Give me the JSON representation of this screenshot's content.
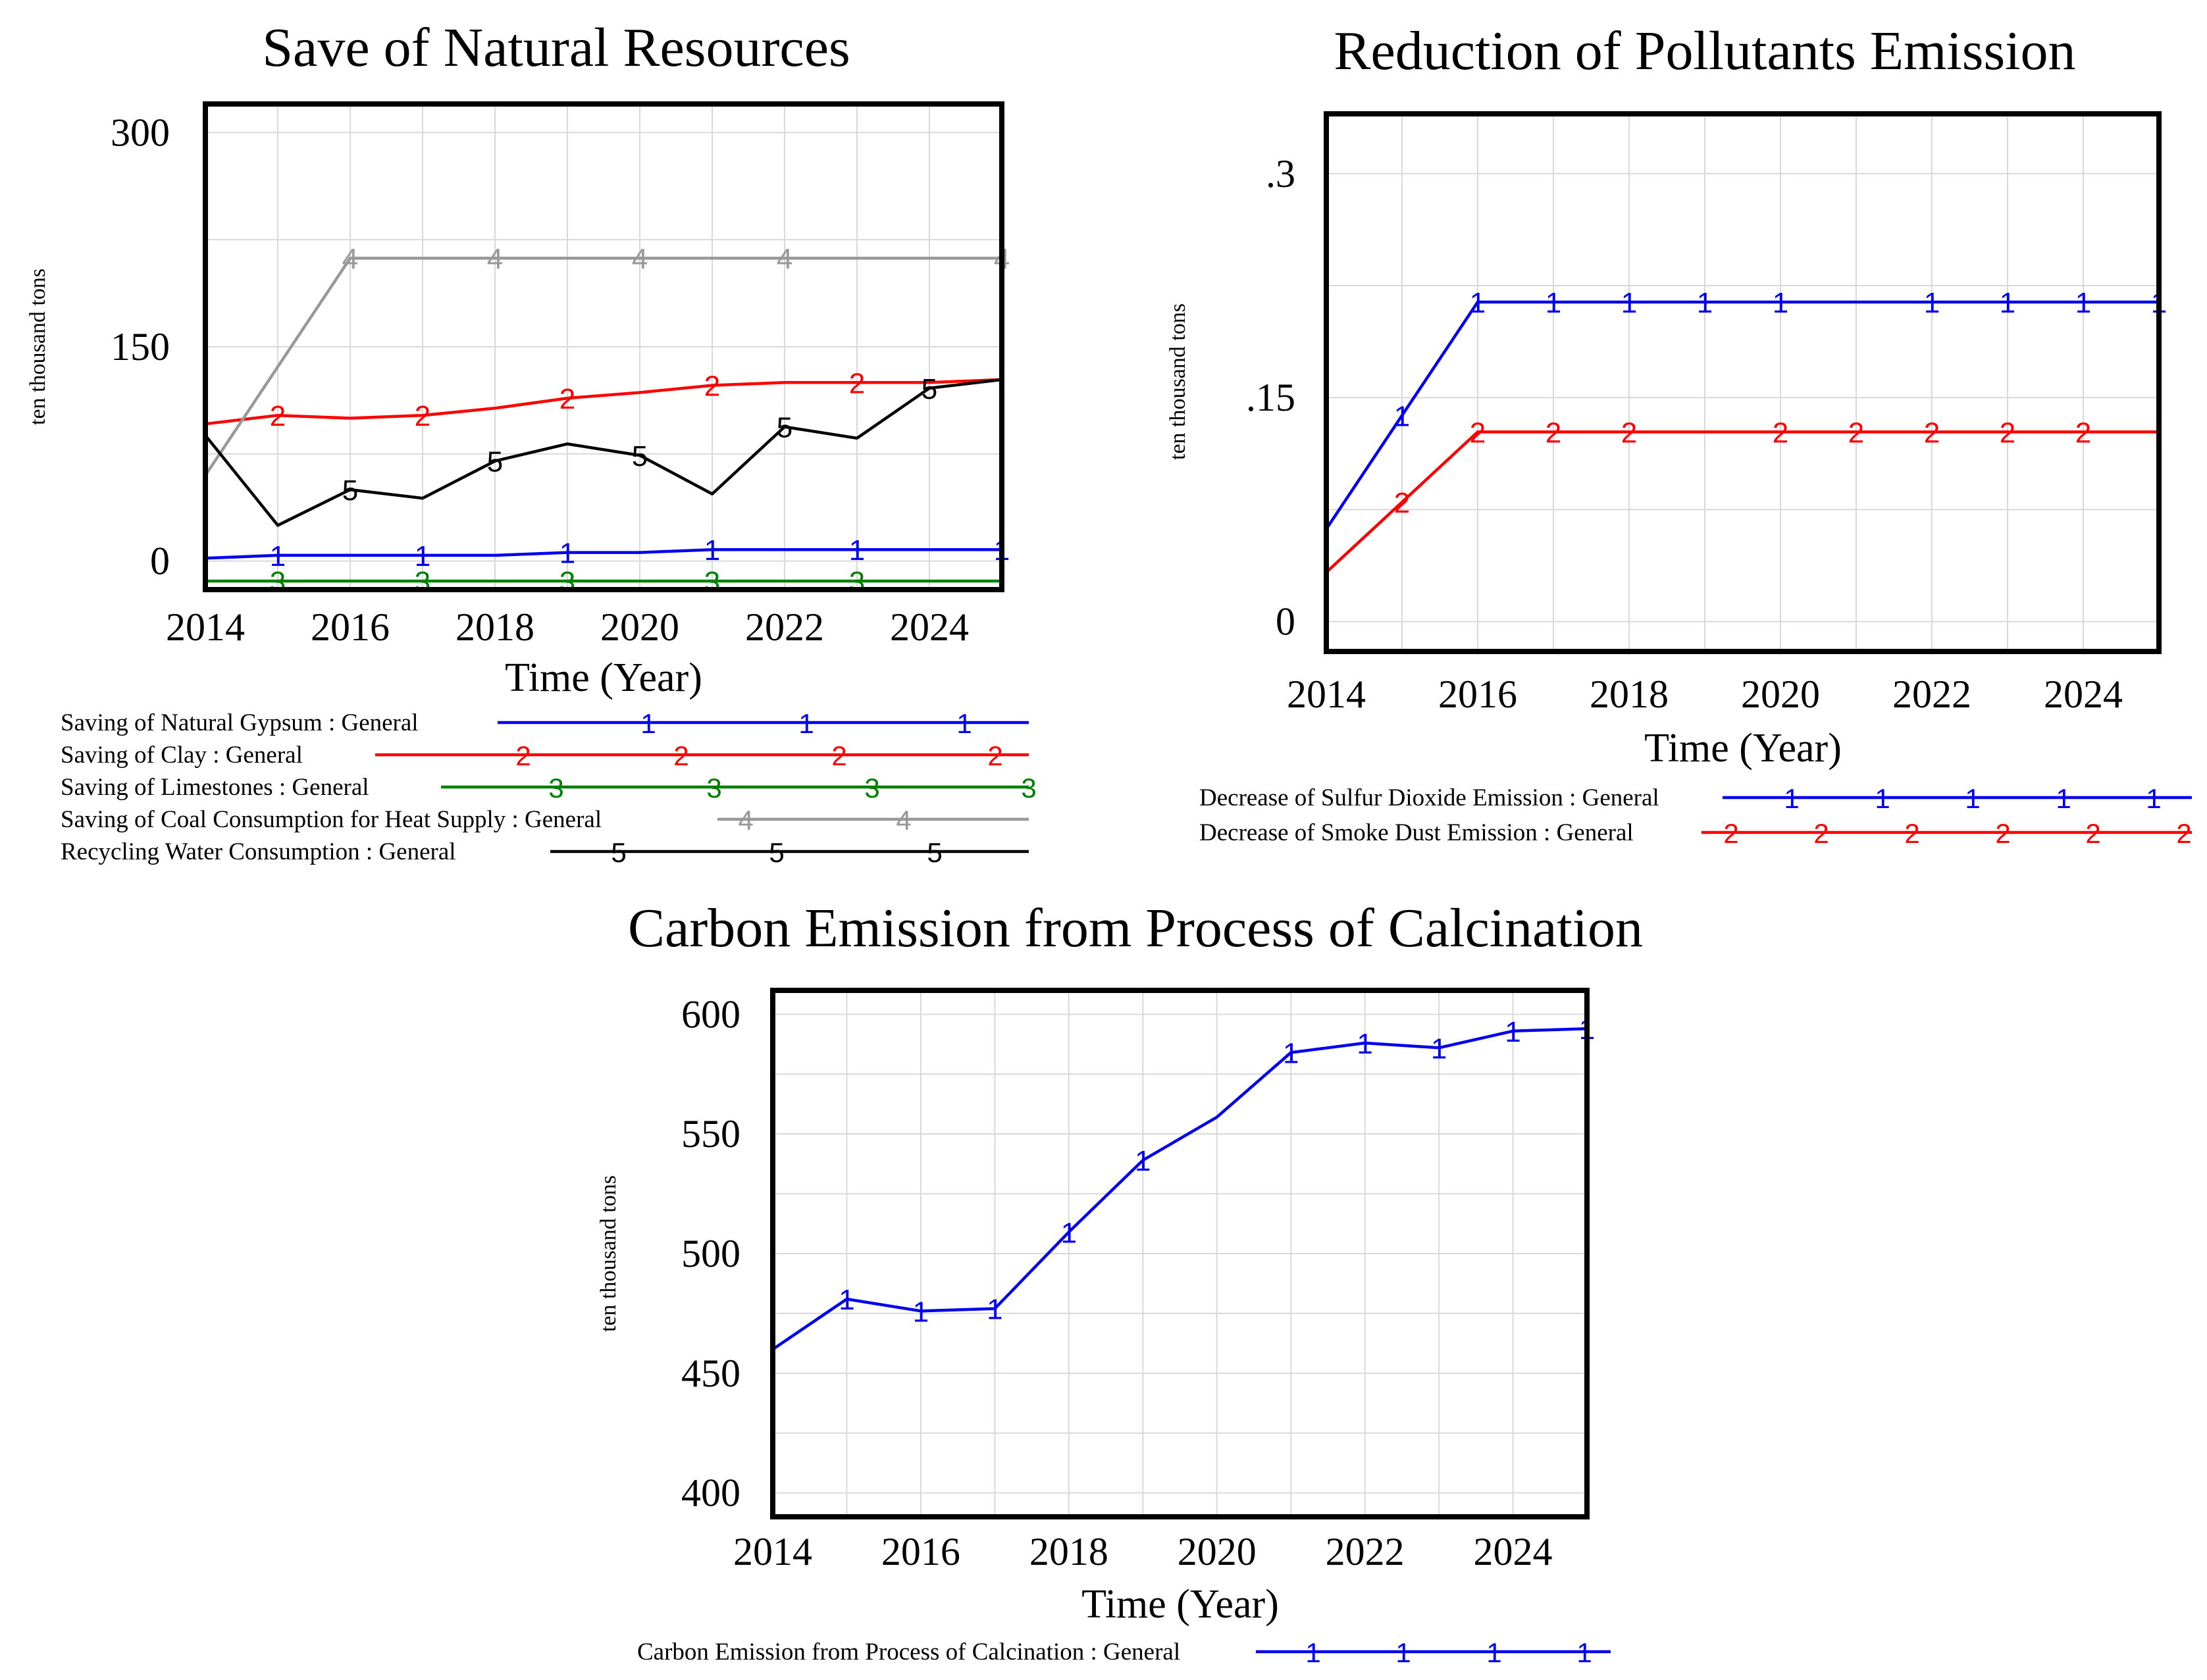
{
  "chart_data": [
    {
      "type": "line",
      "title": "Save of Natural Resources",
      "xlabel": "Time (Year)",
      "ylabel": "ten thousand tons",
      "xlim": [
        2014,
        2025
      ],
      "ylim": [
        -20,
        320
      ],
      "x_ticks": [
        2014,
        2016,
        2018,
        2020,
        2022,
        2024
      ],
      "x_tick_labels": [
        "2014",
        "2016",
        "2018",
        "2020",
        "2022",
        "2024"
      ],
      "y_ticks": [
        0,
        150,
        300
      ],
      "y_tick_labels": [
        "0",
        "150",
        "300"
      ],
      "x": [
        2014,
        2015,
        2016,
        2017,
        2018,
        2019,
        2020,
        2021,
        2022,
        2023,
        2024,
        2025
      ],
      "series": [
        {
          "name": "Saving of Natural Gypsum : General",
          "marker": "1",
          "color": "#0000ee",
          "values": [
            2,
            4,
            4,
            4,
            4,
            6,
            6,
            8,
            8,
            8,
            8,
            8
          ],
          "marker_x": [
            2015,
            2017,
            2019,
            2021,
            2023,
            2025
          ]
        },
        {
          "name": "Saving of Clay : General",
          "marker": "2",
          "color": "#ff0000",
          "values": [
            96,
            102,
            100,
            102,
            107,
            114,
            118,
            123,
            125,
            125,
            125,
            127
          ],
          "marker_x": [
            2015,
            2017,
            2019,
            2021,
            2023
          ]
        },
        {
          "name": "Saving of Limestones : General",
          "marker": "3",
          "color": "#008000",
          "values": [
            -14,
            -14,
            -14,
            -14,
            -14,
            -14,
            -14,
            -14,
            -14,
            -14,
            -14,
            -14
          ],
          "marker_x": [
            2015,
            2017,
            2019,
            2021,
            2023
          ]
        },
        {
          "name": "Saving of Coal Consumption for Heat Supply : General",
          "marker": "4",
          "color": "#999999",
          "values": [
            60,
            136,
            212,
            212,
            212,
            212,
            212,
            212,
            212,
            212,
            212,
            212
          ],
          "marker_x": [
            2016,
            2018,
            2020,
            2022,
            2025
          ]
        },
        {
          "name": "Recycling Water Consumption : General",
          "marker": "5",
          "color": "#000000",
          "values": [
            88,
            25,
            50,
            44,
            70,
            82,
            74,
            47,
            94,
            86,
            121,
            127
          ],
          "marker_x": [
            2016,
            2018,
            2020,
            2022,
            2024
          ]
        }
      ]
    },
    {
      "type": "line",
      "title": "Reduction of Pollutants Emission",
      "xlabel": "Time (Year)",
      "ylabel": "ten thousand tons",
      "xlim": [
        2014,
        2025
      ],
      "ylim": [
        -0.02,
        0.34
      ],
      "x_ticks": [
        2014,
        2016,
        2018,
        2020,
        2022,
        2024
      ],
      "x_tick_labels": [
        "2014",
        "2016",
        "2018",
        "2020",
        "2022",
        "2024"
      ],
      "y_ticks": [
        0,
        0.15,
        0.3
      ],
      "y_tick_labels": [
        "0",
        ".15",
        ".3"
      ],
      "x": [
        2014,
        2015,
        2016,
        2017,
        2018,
        2019,
        2020,
        2021,
        2022,
        2023,
        2024,
        2025
      ],
      "series": [
        {
          "name": "Decrease of Sulfur Dioxide Emission : General",
          "marker": "1",
          "color": "#0000ee",
          "values": [
            0.062,
            0.138,
            0.214,
            0.214,
            0.214,
            0.214,
            0.214,
            0.214,
            0.214,
            0.214,
            0.214,
            0.214
          ],
          "marker_x": [
            2015,
            2016,
            2017,
            2018,
            2019,
            2020,
            2022,
            2023,
            2024,
            2025
          ]
        },
        {
          "name": "Decrease of Smoke Dust Emission : General",
          "marker": "2",
          "color": "#ff0000",
          "values": [
            0.033,
            0.08,
            0.127,
            0.127,
            0.127,
            0.127,
            0.127,
            0.127,
            0.127,
            0.127,
            0.127,
            0.127
          ],
          "marker_x": [
            2015,
            2016,
            2017,
            2018,
            2020,
            2021,
            2022,
            2023,
            2024
          ]
        }
      ]
    },
    {
      "type": "line",
      "title": "Carbon Emission from Process of Calcination",
      "xlabel": "Time (Year)",
      "ylabel": "ten thousand tons",
      "xlim": [
        2014,
        2025
      ],
      "ylim": [
        390,
        610
      ],
      "x_ticks": [
        2014,
        2016,
        2018,
        2020,
        2022,
        2024
      ],
      "x_tick_labels": [
        "2014",
        "2016",
        "2018",
        "2020",
        "2022",
        "2024"
      ],
      "y_ticks": [
        400,
        450,
        500,
        550,
        600
      ],
      "y_tick_labels": [
        "400",
        "450",
        "500",
        "550",
        "600"
      ],
      "x": [
        2014,
        2015,
        2016,
        2017,
        2018,
        2019,
        2020,
        2021,
        2022,
        2023,
        2024,
        2025
      ],
      "series": [
        {
          "name": "Carbon Emission from Process of Calcination : General",
          "marker": "1",
          "color": "#0000ee",
          "values": [
            460,
            481,
            476,
            477,
            509,
            539,
            557,
            584,
            588,
            586,
            593,
            594
          ],
          "marker_x": [
            2015,
            2016,
            2017,
            2018,
            2019,
            2021,
            2022,
            2023,
            2024,
            2025
          ]
        }
      ]
    }
  ]
}
